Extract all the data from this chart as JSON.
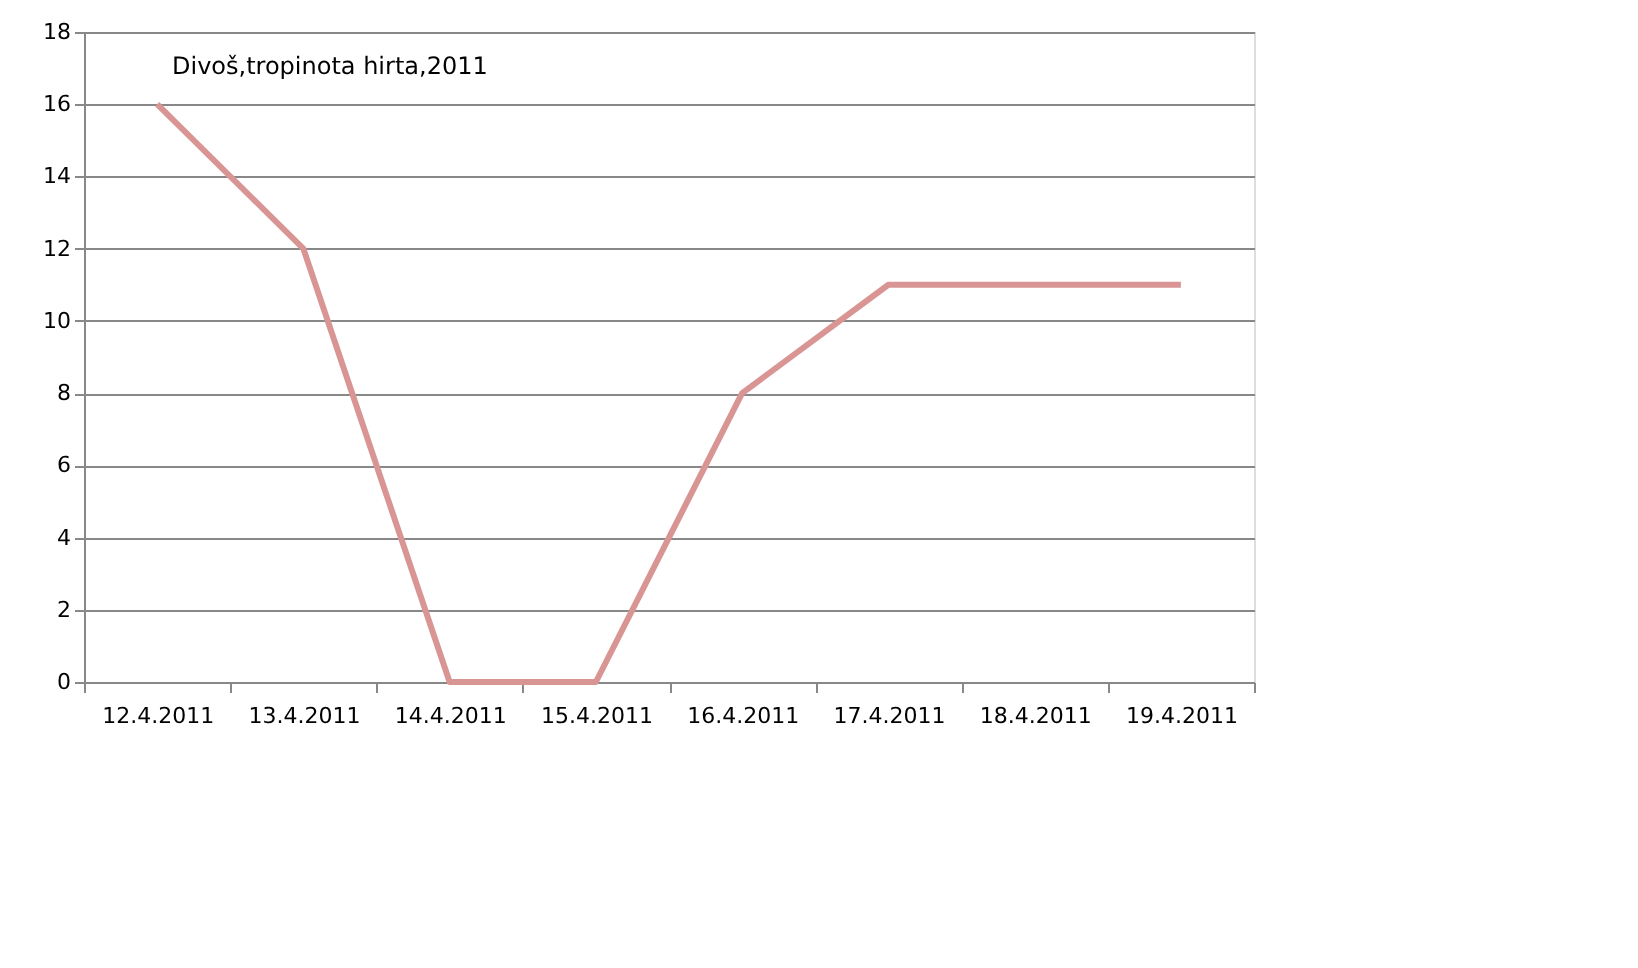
{
  "chart_data": {
    "type": "line",
    "annotations": [
      "Divoš,tropinota hirta,2011"
    ],
    "categories": [
      "12.4.2011",
      "13.4.2011",
      "14.4.2011",
      "15.4.2011",
      "16.4.2011",
      "17.4.2011",
      "18.4.2011",
      "19.4.2011"
    ],
    "series": [
      {
        "color": "#d99594",
        "values": [
          16,
          12,
          0,
          0,
          8,
          11,
          11,
          11
        ]
      }
    ],
    "ylim": [
      0,
      18
    ],
    "yticks": [
      0,
      2,
      4,
      6,
      8,
      10,
      12,
      14,
      16,
      18
    ],
    "grid": "y",
    "marker": "none",
    "line_style": "solid"
  }
}
